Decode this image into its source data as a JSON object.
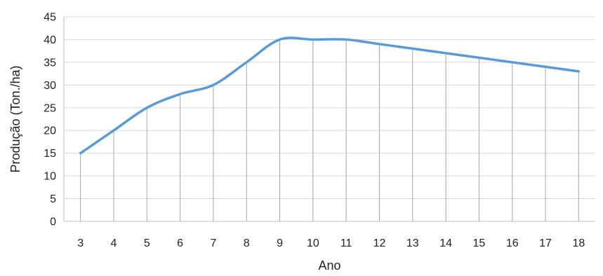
{
  "chart_data": {
    "type": "line",
    "title": "",
    "xlabel": "Ano",
    "ylabel": "Produção (Ton./ha)",
    "x": [
      3,
      4,
      5,
      6,
      7,
      8,
      9,
      10,
      11,
      12,
      13,
      14,
      15,
      16,
      17,
      18
    ],
    "series": [
      {
        "name": "",
        "values": [
          15,
          20,
          25,
          28,
          30,
          35,
          40,
          40,
          40,
          39,
          38,
          37,
          36,
          35,
          34,
          33
        ]
      }
    ],
    "ylim": [
      0,
      45
    ],
    "yticks": [
      0,
      5,
      10,
      15,
      20,
      25,
      30,
      35,
      40,
      45
    ],
    "grid": "horizontal",
    "drop_lines": true,
    "smooth": true,
    "legend": "none",
    "colors": {
      "line": "#5b9bd5",
      "grid": "#d9d9d9",
      "drop_line": "#a6a6a6",
      "axis": "#bfbfbf",
      "text": "#222222"
    }
  }
}
